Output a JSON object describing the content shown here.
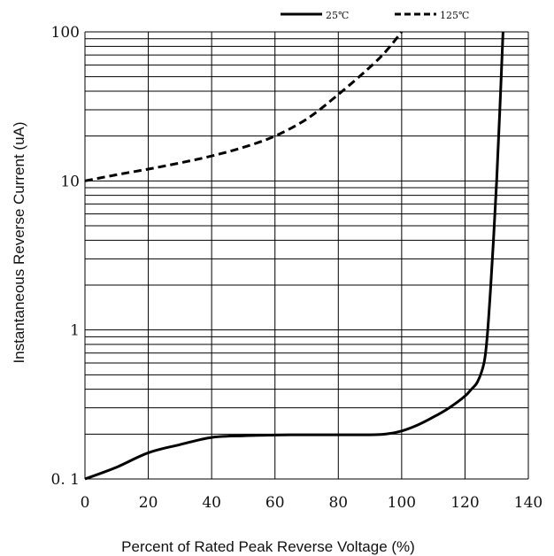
{
  "chart_data": {
    "type": "line",
    "xlabel": "Percent of Rated Peak  Reverse Voltage (%)",
    "ylabel": "Instantaneous Reverse Current (uA)",
    "x_ticks": [
      "0",
      "20",
      "40",
      "60",
      "80",
      "100",
      "120",
      "140"
    ],
    "y_ticks": [
      "0. 1",
      "1",
      "10",
      "100"
    ],
    "xlim": [
      0,
      140
    ],
    "ylim": [
      0.1,
      100
    ],
    "y_scale": "log",
    "grid": true,
    "legend_position": "top-right",
    "series": [
      {
        "name": "25℃",
        "style": "solid",
        "color": "#000000",
        "x": [
          0,
          10,
          20,
          30,
          40,
          50,
          60,
          70,
          80,
          90,
          95,
          100,
          105,
          110,
          115,
          120,
          122,
          124,
          126,
          127,
          128,
          129,
          130,
          131,
          132
        ],
        "y": [
          0.1,
          0.12,
          0.15,
          0.17,
          0.19,
          0.195,
          0.197,
          0.198,
          0.198,
          0.198,
          0.2,
          0.21,
          0.23,
          0.26,
          0.3,
          0.36,
          0.4,
          0.45,
          0.6,
          0.9,
          1.8,
          4,
          10,
          30,
          100
        ]
      },
      {
        "name": "125℃",
        "style": "dashed",
        "color": "#000000",
        "x": [
          0,
          10,
          20,
          30,
          40,
          50,
          60,
          70,
          80,
          90,
          95,
          100
        ],
        "y": [
          10,
          11,
          12,
          13.2,
          14.7,
          16.8,
          20,
          26,
          38,
          58,
          74,
          100
        ]
      }
    ]
  }
}
